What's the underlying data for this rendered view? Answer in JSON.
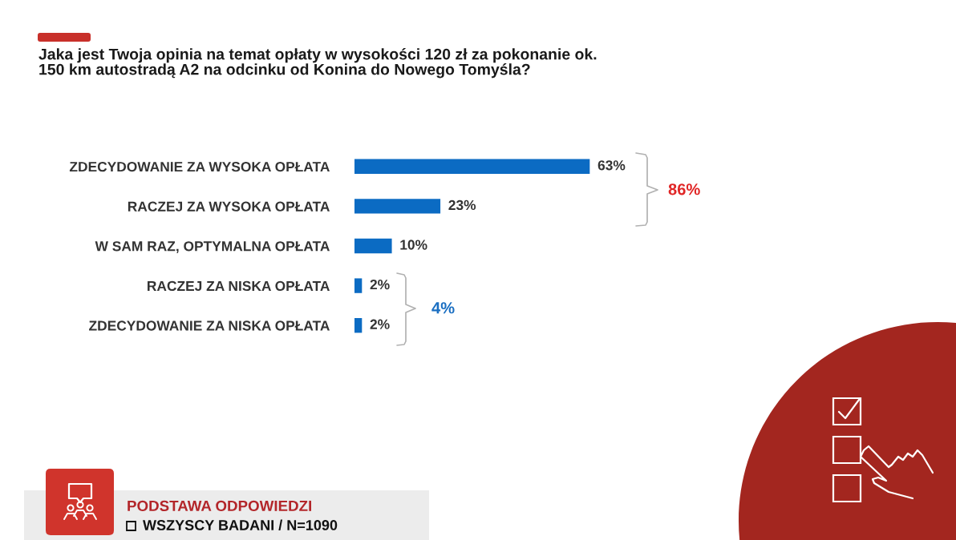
{
  "chart_data": {
    "type": "bar",
    "orientation": "horizontal",
    "title": "Jaka jest Twoja opinia na temat opłaty w wysokości 120 zł za pokonanie ok.\n150 km autostradą A2 na odcinku od Konina do Nowego Tomyśla?",
    "categories": [
      "ZDECYDOWANIE ZA WYSOKA OPŁATA",
      "RACZEJ ZA WYSOKA OPŁATA",
      "W SAM RAZ, OPTYMALNA OPŁATA",
      "RACZEJ ZA NISKA OPŁATA",
      "ZDECYDOWANIE ZA NISKA OPŁATA"
    ],
    "values": [
      63,
      23,
      10,
      2,
      2
    ],
    "color": "#0b6bc3",
    "value_labels": [
      "63%",
      "23%",
      "10%",
      "2%",
      "2%"
    ],
    "tick_labels": "y",
    "annotations": [
      "86%",
      "4%",
      "PODSTAWA ODPOWIEDZI",
      "WSZYSCY BADANI / N=1090"
    ]
  }
}
